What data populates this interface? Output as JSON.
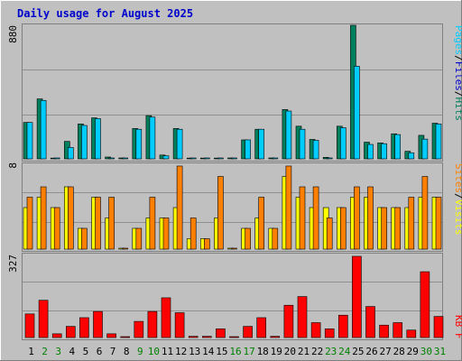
{
  "title": "Daily usage for August 2025",
  "colors": {
    "background": "#c0c0c0",
    "title": "#0000cc",
    "hits": "#00805c",
    "files": "#00ccff",
    "pages": "#00ccff",
    "visits": "#ffff00",
    "sites": "#ff8000",
    "kbytes": "#ff0000",
    "weekday_label": "#000000",
    "weekend_label": "#008000"
  },
  "chart_data": [
    {
      "type": "bar",
      "title": "",
      "legend": [
        "Pages",
        "/",
        "Files",
        "/",
        "Hits"
      ],
      "y_max_label": "880",
      "ylim": [
        0,
        880
      ],
      "categories": [
        "1",
        "2",
        "3",
        "4",
        "5",
        "6",
        "7",
        "8",
        "9",
        "10",
        "11",
        "12",
        "13",
        "14",
        "15",
        "16",
        "17",
        "18",
        "19",
        "20",
        "21",
        "22",
        "23",
        "24",
        "25",
        "26",
        "27",
        "28",
        "29",
        "30",
        "31"
      ],
      "weekend": [
        2,
        3,
        9,
        10,
        16,
        17,
        23,
        24,
        30,
        31
      ],
      "series": [
        {
          "name": "Hits",
          "values": [
            240,
            395,
            5,
            115,
            230,
            270,
            12,
            0,
            200,
            285,
            25,
            200,
            5,
            5,
            5,
            0,
            125,
            195,
            0,
            325,
            215,
            128,
            10,
            215,
            880,
            110,
            105,
            165,
            50,
            155,
            235
          ]
        },
        {
          "name": "Files",
          "values": [
            240,
            385,
            0,
            75,
            220,
            265,
            0,
            0,
            195,
            275,
            20,
            195,
            0,
            0,
            0,
            0,
            125,
            195,
            0,
            315,
            195,
            122,
            0,
            205,
            610,
            95,
            100,
            160,
            40,
            130,
            230
          ]
        }
      ]
    },
    {
      "type": "bar",
      "title": "",
      "legend": [
        "Sites",
        "/",
        "Visits"
      ],
      "y_max_label": "8",
      "ylim": [
        0,
        8
      ],
      "categories": [
        "1",
        "2",
        "3",
        "4",
        "5",
        "6",
        "7",
        "8",
        "9",
        "10",
        "11",
        "12",
        "13",
        "14",
        "15",
        "16",
        "17",
        "18",
        "19",
        "20",
        "21",
        "22",
        "23",
        "24",
        "25",
        "26",
        "27",
        "28",
        "29",
        "30",
        "31"
      ],
      "series": [
        {
          "name": "Visits",
          "values": [
            4,
            5,
            4,
            6,
            2,
            5,
            3,
            0,
            2,
            3,
            3,
            4,
            1,
            1,
            3,
            0,
            2,
            3,
            2,
            7,
            5,
            4,
            4,
            4,
            5,
            5,
            4,
            4,
            4,
            5,
            5
          ]
        },
        {
          "name": "Sites",
          "values": [
            5,
            6,
            4,
            6,
            2,
            5,
            5,
            0,
            2,
            5,
            3,
            8,
            3,
            1,
            7,
            0,
            2,
            5,
            2,
            8,
            6,
            6,
            3,
            4,
            6,
            6,
            4,
            4,
            5,
            7,
            5
          ]
        }
      ]
    },
    {
      "type": "bar",
      "title": "",
      "legend": [
        "KB",
        "F"
      ],
      "y_max_label": "327",
      "ylim": [
        0,
        327
      ],
      "categories": [
        "1",
        "2",
        "3",
        "4",
        "5",
        "6",
        "7",
        "8",
        "9",
        "10",
        "11",
        "12",
        "13",
        "14",
        "15",
        "16",
        "17",
        "18",
        "19",
        "20",
        "21",
        "22",
        "23",
        "24",
        "25",
        "26",
        "27",
        "28",
        "29",
        "30",
        "31"
      ],
      "series": [
        {
          "name": "KB F",
          "values": [
            95,
            150,
            15,
            45,
            80,
            105,
            15,
            0,
            65,
            105,
            160,
            100,
            5,
            5,
            35,
            0,
            45,
            80,
            5,
            130,
            165,
            60,
            35,
            90,
            327,
            125,
            50,
            60,
            30,
            265,
            85
          ]
        }
      ]
    }
  ]
}
